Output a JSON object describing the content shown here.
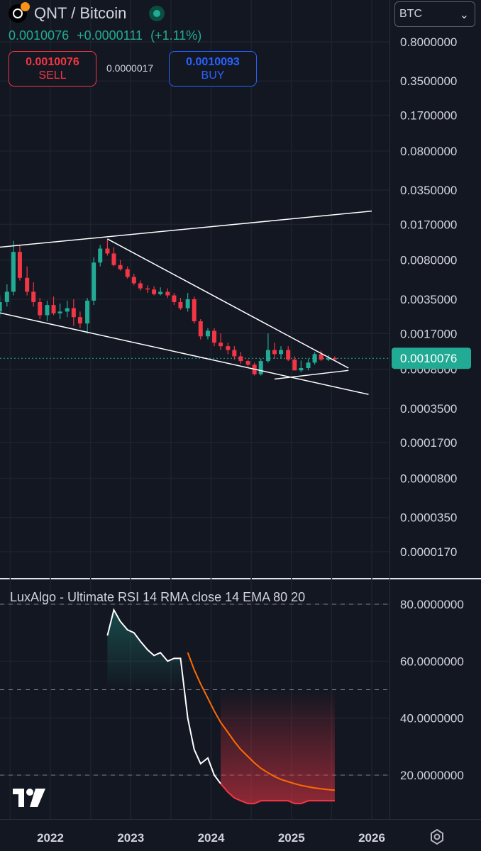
{
  "header": {
    "symbol_icon": "qnt-btc-pair-icon",
    "title": "QNT / Bitcoin",
    "market_status_icon": "market-open-dot-icon",
    "last_price": "0.0010076",
    "change_abs": "+0.0000111",
    "change_pct": "(+1.11%)"
  },
  "trade": {
    "sell_price": "0.0010076",
    "sell_label": "SELL",
    "spread": "0.0000017",
    "buy_price": "0.0010093",
    "buy_label": "BUY"
  },
  "currency_select": {
    "value": "BTC",
    "chevron": "chevron-down-icon"
  },
  "colors": {
    "background": "#131722",
    "up": "#22ab94",
    "down": "#f23645",
    "grid": "#1e222d",
    "line": "#ffffff",
    "ema": "#ff6a00",
    "buy": "#2962ff"
  },
  "price_axis": {
    "labels": [
      "0.8000000",
      "0.3500000",
      "0.1700000",
      "0.0800000",
      "0.0350000",
      "0.0170000",
      "0.0080000",
      "0.0035000",
      "0.0017000",
      "0.0008000",
      "0.0003500",
      "0.0001700",
      "0.0000800",
      "0.0000350",
      "0.0000170"
    ],
    "values": [
      0.8,
      0.35,
      0.17,
      0.08,
      0.035,
      0.017,
      0.008,
      0.0035,
      0.0017,
      0.0008,
      0.00035,
      0.00017,
      8e-05,
      3.5e-05,
      1.7e-05
    ],
    "last_price_label": "0.0010076",
    "last_price": 0.0010076
  },
  "time_axis": {
    "labels": [
      "2022",
      "2023",
      "2024",
      "2025",
      "2026"
    ],
    "years": [
      2022,
      2023,
      2024,
      2025,
      2026
    ]
  },
  "chart_data": [
    {
      "type": "candlestick",
      "title": "QNT / Bitcoin",
      "interval": "1M",
      "y_scale": "log",
      "ylim": [
        1.3e-05,
        1.0
      ],
      "xlim": [
        2021.15,
        2026.2
      ],
      "grid": true,
      "t": [
        2021.29,
        2021.37,
        2021.46,
        2021.54,
        2021.62,
        2021.71,
        2021.79,
        2021.87,
        2021.96,
        2022.04,
        2022.12,
        2022.21,
        2022.29,
        2022.37,
        2022.46,
        2022.54,
        2022.62,
        2022.71,
        2022.79,
        2022.87,
        2022.96,
        2023.04,
        2023.12,
        2023.21,
        2023.29,
        2023.37,
        2023.46,
        2023.54,
        2023.62,
        2023.71,
        2023.79,
        2023.87,
        2023.96,
        2024.04,
        2024.12,
        2024.21,
        2024.29,
        2024.37,
        2024.46,
        2024.54,
        2024.62,
        2024.71,
        2024.79,
        2024.87,
        2024.96,
        2025.04,
        2025.12,
        2025.21,
        2025.29,
        2025.37,
        2025.46,
        2025.54
      ],
      "open": [
        0.0023,
        0.0027,
        0.0033,
        0.0041,
        0.0095,
        0.0055,
        0.0041,
        0.0033,
        0.0025,
        0.0031,
        0.0026,
        0.0027,
        0.0029,
        0.0024,
        0.0021,
        0.0034,
        0.0076,
        0.0102,
        0.0092,
        0.0072,
        0.0066,
        0.0056,
        0.0049,
        0.0044,
        0.0043,
        0.0039,
        0.0041,
        0.0038,
        0.0033,
        0.0029,
        0.0035,
        0.0022,
        0.0016,
        0.0018,
        0.0014,
        0.0013,
        0.0012,
        0.00105,
        0.00095,
        0.00088,
        0.00072,
        0.00095,
        0.0012,
        0.0011,
        0.0012,
        0.00098,
        0.00078,
        0.00082,
        0.00092,
        0.0011,
        0.00098,
        0.00101
      ],
      "high": [
        0.0031,
        0.0038,
        0.0048,
        0.012,
        0.011,
        0.007,
        0.005,
        0.0036,
        0.0034,
        0.0037,
        0.0032,
        0.0034,
        0.0035,
        0.0027,
        0.0036,
        0.0085,
        0.011,
        0.0125,
        0.0105,
        0.008,
        0.007,
        0.006,
        0.0052,
        0.0047,
        0.0046,
        0.0045,
        0.0044,
        0.004,
        0.0036,
        0.004,
        0.0037,
        0.0023,
        0.0019,
        0.0019,
        0.0017,
        0.0014,
        0.0013,
        0.00115,
        0.00098,
        0.00092,
        0.001,
        0.0017,
        0.0014,
        0.0013,
        0.0013,
        0.00105,
        0.00096,
        0.001,
        0.00115,
        0.00118,
        0.00108,
        0.00105
      ],
      "low": [
        0.0021,
        0.0024,
        0.003,
        0.0038,
        0.0052,
        0.0038,
        0.003,
        0.0023,
        0.0022,
        0.0025,
        0.0023,
        0.0024,
        0.002,
        0.0019,
        0.0017,
        0.0031,
        0.007,
        0.0088,
        0.007,
        0.0064,
        0.0054,
        0.0047,
        0.0042,
        0.004,
        0.0038,
        0.0038,
        0.0036,
        0.0031,
        0.0028,
        0.0027,
        0.0021,
        0.0015,
        0.0015,
        0.0013,
        0.0012,
        0.0011,
        0.00098,
        0.0009,
        0.00085,
        0.0007,
        0.0007,
        0.00092,
        0.001,
        0.001,
        0.00095,
        0.00078,
        0.00075,
        0.00078,
        0.00088,
        0.00095,
        0.00095,
        0.00098
      ],
      "close": [
        0.0027,
        0.0033,
        0.0041,
        0.0095,
        0.0055,
        0.0041,
        0.0033,
        0.0025,
        0.0031,
        0.0026,
        0.0027,
        0.0029,
        0.0024,
        0.0021,
        0.0034,
        0.0076,
        0.0102,
        0.0092,
        0.0072,
        0.0066,
        0.0056,
        0.0049,
        0.0044,
        0.0043,
        0.0039,
        0.0041,
        0.0038,
        0.0033,
        0.0029,
        0.0035,
        0.0022,
        0.0016,
        0.0018,
        0.0014,
        0.0013,
        0.0012,
        0.00105,
        0.00095,
        0.00088,
        0.00072,
        0.00095,
        0.0012,
        0.0011,
        0.0012,
        0.00098,
        0.00078,
        0.00082,
        0.00092,
        0.0011,
        0.00098,
        0.00101,
        0.0010076
      ]
    },
    {
      "type": "line",
      "title": "LuxAlgo - Ultimate RSI 14 RMA close 14 EMA 80 20",
      "ylim": [
        4,
        88
      ],
      "levels": [
        80,
        50,
        20
      ],
      "y_labels": [
        "80.0000000",
        "60.0000000",
        "40.0000000",
        "20.0000000"
      ],
      "y_values": [
        80,
        60,
        40,
        20
      ],
      "series": [
        {
          "role": "rsi",
          "x": [
            2022.71,
            2022.79,
            2022.87,
            2022.96,
            2023.04,
            2023.12,
            2023.21,
            2023.29,
            2023.37,
            2023.46,
            2023.54,
            2023.62,
            2023.71,
            2023.79,
            2023.87,
            2023.96,
            2024.04,
            2024.12,
            2024.21,
            2024.29,
            2024.37,
            2024.46,
            2024.54,
            2024.62,
            2024.71,
            2024.79,
            2024.87,
            2024.96,
            2025.04,
            2025.12,
            2025.21,
            2025.29,
            2025.37,
            2025.46,
            2025.54
          ],
          "y": [
            69,
            78,
            74,
            71,
            70,
            67,
            64,
            62,
            63,
            60,
            61,
            61,
            40,
            29,
            24,
            26,
            20,
            17,
            14,
            12,
            11,
            10,
            10,
            11,
            11,
            11,
            11,
            11,
            10,
            10,
            11,
            11,
            11,
            11,
            11
          ]
        },
        {
          "role": "signal",
          "x": [
            2023.71,
            2023.79,
            2023.87,
            2023.96,
            2024.04,
            2024.12,
            2024.21,
            2024.29,
            2024.37,
            2024.46,
            2024.54,
            2024.62,
            2024.71,
            2024.79,
            2024.87,
            2024.96,
            2025.04,
            2025.12,
            2025.21,
            2025.29,
            2025.37,
            2025.46,
            2025.54
          ],
          "y": [
            63,
            57,
            52,
            47,
            42.5,
            38.5,
            35,
            31.8,
            29,
            26.5,
            24.3,
            22.4,
            20.8,
            19.5,
            18.5,
            17.7,
            17,
            16.4,
            15.9,
            15.5,
            15.2,
            14.9,
            14.7
          ]
        }
      ]
    }
  ],
  "drawings": {
    "trendlines": [
      {
        "t1": 2021.37,
        "p1": 0.0105,
        "t2": 2026.0,
        "p2": 0.0225
      },
      {
        "t1": 2022.71,
        "p1": 0.0125,
        "t2": 2025.71,
        "p2": 0.00082
      },
      {
        "t1": 2021.2,
        "p1": 0.0028,
        "t2": 2025.96,
        "p2": 0.00047
      },
      {
        "t1": 2024.79,
        "p1": 0.00065,
        "t2": 2025.71,
        "p2": 0.00078
      }
    ]
  },
  "indicator_label": "LuxAlgo - Ultimate RSI 14 RMA close 14 EMA 80 20",
  "footer": {
    "logo_icon": "tradingview-logo-icon",
    "settings_icon": "gear-settings-icon"
  }
}
